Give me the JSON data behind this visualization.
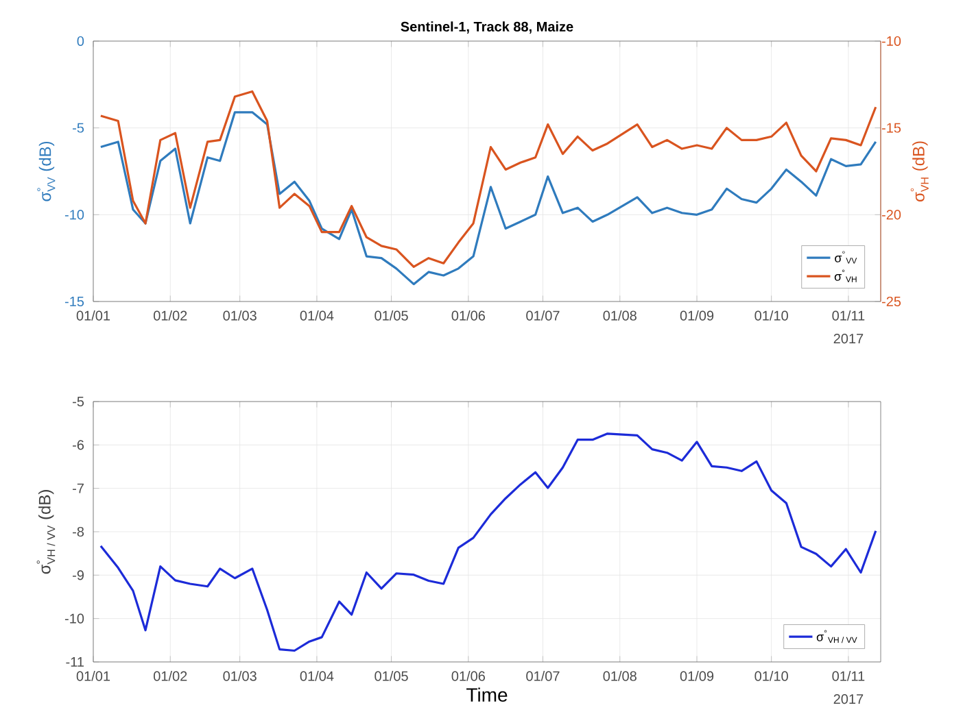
{
  "chart_data": [
    {
      "type": "line",
      "title": "Sentinel-1, Track 88, Maize",
      "ylabel": "\\text{σ}^{\\text{°}}_{\\text{VV}}\\text{ (dB)}",
      "y2label": "\\text{σ}^{\\text{°}}_{\\text{VH}}\\text{ (dB)}",
      "x": [
        "2017-01-04",
        "2017-01-11",
        "2017-01-17",
        "2017-01-22",
        "2017-01-28",
        "2017-02-03",
        "2017-02-09",
        "2017-02-16",
        "2017-02-21",
        "2017-02-27",
        "2017-03-06",
        "2017-03-12",
        "2017-03-17",
        "2017-03-23",
        "2017-03-29",
        "2017-04-03",
        "2017-04-10",
        "2017-04-15",
        "2017-04-21",
        "2017-04-27",
        "2017-05-03",
        "2017-05-10",
        "2017-05-16",
        "2017-05-22",
        "2017-05-28",
        "2017-06-03",
        "2017-06-10",
        "2017-06-16",
        "2017-06-22",
        "2017-06-28",
        "2017-07-03",
        "2017-07-09",
        "2017-07-15",
        "2017-07-21",
        "2017-07-27",
        "2017-08-08",
        "2017-08-14",
        "2017-08-20",
        "2017-08-26",
        "2017-09-01",
        "2017-09-07",
        "2017-09-13",
        "2017-09-19",
        "2017-09-25",
        "2017-10-01",
        "2017-10-07",
        "2017-10-13",
        "2017-10-19",
        "2017-10-25",
        "2017-10-31",
        "2017-11-06",
        "2017-11-12"
      ],
      "series": [
        {
          "name": "σ$^{°}$$_{VV}$",
          "color": "#2f7bbd",
          "values": [
            -6.1,
            -5.8,
            -9.7,
            -10.5,
            -6.9,
            -6.2,
            -10.5,
            -6.7,
            -6.9,
            -4.1,
            -4.1,
            -4.8,
            -8.8,
            -8.1,
            -9.2,
            -10.8,
            -11.4,
            -9.7,
            -12.4,
            -12.5,
            -13.1,
            -14.0,
            -13.3,
            -13.5,
            -13.1,
            -12.4,
            -8.4,
            -10.8,
            -10.4,
            -10.0,
            -7.8,
            -9.9,
            -9.6,
            -10.4,
            -10.0,
            -9.0,
            -9.9,
            -9.6,
            -9.9,
            -10.0,
            -9.7,
            -8.5,
            -9.1,
            -9.3,
            -8.5,
            -7.4,
            -8.1,
            -8.9,
            -6.8,
            -7.2,
            -7.1,
            -5.8
          ]
        },
        {
          "name": "σ$^{°}$$_{VH}$",
          "color": "#d9541f",
          "axis": "y2",
          "values": [
            -14.3,
            -14.6,
            -19.2,
            -20.5,
            -15.7,
            -15.3,
            -19.6,
            -15.8,
            -15.7,
            -13.2,
            -12.9,
            -14.6,
            -19.6,
            -18.8,
            -19.5,
            -21.0,
            -21.0,
            -19.5,
            -21.3,
            -21.8,
            -22.0,
            -23.0,
            -22.5,
            -22.8,
            -21.6,
            -20.5,
            -16.1,
            -17.4,
            -17.0,
            -16.7,
            -14.8,
            -16.5,
            -15.5,
            -16.3,
            -15.9,
            -14.8,
            -16.1,
            -15.7,
            -16.2,
            -16.0,
            -16.2,
            -15.0,
            -15.7,
            -15.7,
            -15.5,
            -14.7,
            -16.6,
            -17.5,
            -15.6,
            -15.7,
            -16.0,
            -13.8
          ]
        }
      ],
      "xlim": [
        "2017-01-01",
        "2017-11-14"
      ],
      "xticks": [
        {
          "value": "2017-01-01",
          "label": "01/01"
        },
        {
          "value": "2017-02-01",
          "label": "01/02"
        },
        {
          "value": "2017-03-01",
          "label": "01/03"
        },
        {
          "value": "2017-04-01",
          "label": "01/04"
        },
        {
          "value": "2017-05-01",
          "label": "01/05"
        },
        {
          "value": "2017-06-01",
          "label": "01/06"
        },
        {
          "value": "2017-07-01",
          "label": "01/07"
        },
        {
          "value": "2017-08-01",
          "label": "01/08"
        },
        {
          "value": "2017-09-01",
          "label": "01/09"
        },
        {
          "value": "2017-10-01",
          "label": "01/10"
        },
        {
          "value": "2017-11-01",
          "label": "01/11"
        }
      ],
      "ylim": [
        -15,
        0
      ],
      "yticks": [
        -15,
        -10,
        -5,
        0
      ],
      "y2lim": [
        -25,
        -10
      ],
      "y2ticks": [
        -25,
        -20,
        -15,
        -10
      ],
      "grid": true,
      "legend": "bottom right",
      "annotations": [
        "2017"
      ]
    },
    {
      "type": "line",
      "xlabel": "Time",
      "ylabel": "\\text{σ}^{\\text{°}}_{\\text{VH / VV}}\\text{ (dB)}",
      "x": [
        "2017-01-04",
        "2017-01-11",
        "2017-01-17",
        "2017-01-22",
        "2017-01-28",
        "2017-02-03",
        "2017-02-09",
        "2017-02-16",
        "2017-02-21",
        "2017-02-27",
        "2017-03-06",
        "2017-03-12",
        "2017-03-17",
        "2017-03-23",
        "2017-03-29",
        "2017-04-03",
        "2017-04-10",
        "2017-04-15",
        "2017-04-21",
        "2017-04-27",
        "2017-05-03",
        "2017-05-10",
        "2017-05-16",
        "2017-05-22",
        "2017-05-28",
        "2017-06-03",
        "2017-06-10",
        "2017-06-16",
        "2017-06-22",
        "2017-06-28",
        "2017-07-03",
        "2017-07-09",
        "2017-07-15",
        "2017-07-21",
        "2017-07-27",
        "2017-08-08",
        "2017-08-14",
        "2017-08-20",
        "2017-08-26",
        "2017-09-01",
        "2017-09-07",
        "2017-09-13",
        "2017-09-19",
        "2017-09-25",
        "2017-10-01",
        "2017-10-07",
        "2017-10-13",
        "2017-10-19",
        "2017-10-25",
        "2017-10-31",
        "2017-11-06",
        "2017-11-12"
      ],
      "series": [
        {
          "name": "σ$^{°}$$_{VH / VV}$",
          "color": "#1c2bd8",
          "values": [
            -8.33,
            -8.83,
            -9.36,
            -10.27,
            -8.8,
            -9.12,
            -9.2,
            -9.26,
            -8.85,
            -9.07,
            -8.85,
            -9.8,
            -10.71,
            -10.74,
            -10.53,
            -10.43,
            -9.61,
            -9.91,
            -8.94,
            -9.31,
            -8.96,
            -8.99,
            -9.13,
            -9.2,
            -8.37,
            -8.14,
            -7.6,
            -7.23,
            -6.91,
            -6.63,
            -6.99,
            -6.52,
            -5.88,
            -5.88,
            -5.74,
            -5.78,
            -6.1,
            -6.18,
            -6.36,
            -5.93,
            -6.49,
            -6.52,
            -6.6,
            -6.38,
            -7.05,
            -7.34,
            -8.35,
            -8.51,
            -8.8,
            -8.4,
            -8.94,
            -7.98
          ]
        }
      ],
      "xlim": [
        "2017-01-01",
        "2017-11-14"
      ],
      "xticks": [
        {
          "value": "2017-01-01",
          "label": "01/01"
        },
        {
          "value": "2017-02-01",
          "label": "01/02"
        },
        {
          "value": "2017-03-01",
          "label": "01/03"
        },
        {
          "value": "2017-04-01",
          "label": "01/04"
        },
        {
          "value": "2017-05-01",
          "label": "01/05"
        },
        {
          "value": "2017-06-01",
          "label": "01/06"
        },
        {
          "value": "2017-07-01",
          "label": "01/07"
        },
        {
          "value": "2017-08-01",
          "label": "01/08"
        },
        {
          "value": "2017-09-01",
          "label": "01/09"
        },
        {
          "value": "2017-10-01",
          "label": "01/10"
        },
        {
          "value": "2017-11-01",
          "label": "01/11"
        }
      ],
      "ylim": [
        -11,
        -5
      ],
      "yticks": [
        -11,
        -10,
        -9,
        -8,
        -7,
        -6,
        -5
      ],
      "grid": true,
      "legend": "bottom right",
      "annotations": [
        "2017"
      ]
    }
  ]
}
